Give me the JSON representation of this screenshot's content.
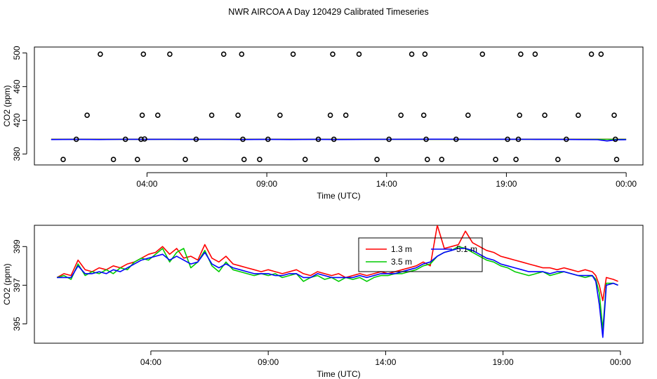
{
  "title": "NWR AIRCOA A  Day 120429  Calibrated Timeseries",
  "chart_data": [
    {
      "type": "line",
      "panel": "top",
      "xlabel": "Time (UTC)",
      "ylabel": "CO2 (ppm)",
      "x_unit": "hours UTC",
      "xlim": [
        -0.7,
        24.7
      ],
      "ylim": [
        367,
        507
      ],
      "xticks": [
        4,
        9,
        14,
        19,
        24
      ],
      "xtick_labels": [
        "04:00",
        "09:00",
        "14:00",
        "19:00",
        "00:00"
      ],
      "yticks": [
        380,
        420,
        460,
        500
      ],
      "ytick_labels": [
        "380",
        "420",
        "460",
        "500"
      ],
      "series": [
        {
          "name": "1.3 m",
          "color": "#ff0000",
          "x": [
            0.0,
            24.0
          ],
          "values": [
            397.5,
            397.5
          ]
        },
        {
          "name": "3.5 m",
          "color": "#00cc00",
          "x": [
            0.0,
            24.0
          ],
          "values": [
            397.4,
            397.4
          ]
        },
        {
          "name": "5.1 m",
          "color": "#0000ff",
          "x": [
            0.0,
            1.0,
            2.0,
            3.0,
            4.0,
            5.0,
            6.0,
            7.0,
            8.0,
            9.0,
            10.0,
            11.0,
            12.0,
            13.0,
            14.0,
            15.0,
            16.0,
            17.0,
            18.0,
            19.0,
            20.0,
            21.0,
            22.0,
            22.8,
            23.2,
            23.6,
            24.0
          ],
          "values": [
            397.2,
            397.3,
            397.2,
            397.4,
            397.3,
            397.4,
            397.3,
            397.4,
            397.2,
            397.3,
            397.2,
            397.3,
            397.2,
            397.3,
            397.4,
            397.5,
            397.6,
            397.5,
            397.4,
            397.5,
            397.4,
            397.3,
            397.2,
            397.0,
            395.5,
            396.8,
            397.0
          ]
        }
      ],
      "flagged_points": {
        "marker": "open-circle",
        "x": [
          0.5,
          1.05,
          1.5,
          2.05,
          2.6,
          3.1,
          3.6,
          3.75,
          3.8,
          3.85,
          3.9,
          4.45,
          4.95,
          5.6,
          6.05,
          6.7,
          7.2,
          7.8,
          7.95,
          8.0,
          8.05,
          8.7,
          9.05,
          9.55,
          10.1,
          10.6,
          11.15,
          11.65,
          11.75,
          11.8,
          12.3,
          12.85,
          13.6,
          14.1,
          14.6,
          15.05,
          15.55,
          15.6,
          15.65,
          15.7,
          16.3,
          16.9,
          17.4,
          18.0,
          18.55,
          19.05,
          19.4,
          19.5,
          19.55,
          19.6,
          20.2,
          20.6,
          21.15,
          21.5,
          22.0,
          22.55,
          22.95,
          23.5,
          23.55,
          23.6
        ],
        "values": [
          373.5,
          397.5,
          426.0,
          498.5,
          373.5,
          397.5,
          373.5,
          397.5,
          426.0,
          498.5,
          397.8,
          426.0,
          498.5,
          373.5,
          397.5,
          426.0,
          498.5,
          426.0,
          498.5,
          397.5,
          373.5,
          373.5,
          397.5,
          426.0,
          498.5,
          373.5,
          397.5,
          426.0,
          498.5,
          397.5,
          426.0,
          498.5,
          373.5,
          397.5,
          426.0,
          498.5,
          426.0,
          498.5,
          397.5,
          373.5,
          373.5,
          397.5,
          426.0,
          498.5,
          373.5,
          397.5,
          373.5,
          397.5,
          426.0,
          498.5,
          498.5,
          426.0,
          373.5,
          397.5,
          426.0,
          498.5,
          498.5,
          426.0,
          397.5,
          373.5
        ]
      }
    },
    {
      "type": "line",
      "panel": "bottom",
      "xlabel": "Time (UTC)",
      "ylabel": "CO2 (ppm)",
      "x_unit": "hours UTC",
      "xlim": [
        -0.96,
        24.96
      ],
      "ylim": [
        394.0,
        400.1
      ],
      "xticks": [
        4,
        9,
        14,
        19,
        24
      ],
      "xtick_labels": [
        "04:00",
        "09:00",
        "14:00",
        "19:00",
        "00:00"
      ],
      "yticks": [
        395,
        397,
        399
      ],
      "ytick_labels": [
        "395",
        "397",
        "399"
      ],
      "legend": {
        "location": "top-center",
        "entries": [
          "1.3 m",
          "3.5 m",
          "5.1 m"
        ]
      },
      "series": [
        {
          "name": "1.3 m",
          "color": "#ff0000",
          "x": [
            0.0,
            0.3,
            0.6,
            0.9,
            1.2,
            1.5,
            1.8,
            2.1,
            2.4,
            2.7,
            3.0,
            3.3,
            3.6,
            3.9,
            4.2,
            4.5,
            4.8,
            5.1,
            5.4,
            5.7,
            6.0,
            6.3,
            6.6,
            6.9,
            7.2,
            7.5,
            7.8,
            8.1,
            8.4,
            8.7,
            9.0,
            9.3,
            9.6,
            9.9,
            10.2,
            10.5,
            10.8,
            11.1,
            11.4,
            11.7,
            12.0,
            12.3,
            12.6,
            12.9,
            13.2,
            13.5,
            13.8,
            14.1,
            14.4,
            14.7,
            15.0,
            15.3,
            15.6,
            15.9,
            16.2,
            16.5,
            16.8,
            17.1,
            17.4,
            17.7,
            18.0,
            18.3,
            18.6,
            18.9,
            19.2,
            19.5,
            19.8,
            20.1,
            20.4,
            20.7,
            21.0,
            21.3,
            21.6,
            21.9,
            22.2,
            22.5,
            22.8,
            22.95,
            23.1,
            23.25,
            23.4,
            23.7,
            23.9
          ],
          "values": [
            397.4,
            397.6,
            397.5,
            398.3,
            397.8,
            397.7,
            397.9,
            397.8,
            398.0,
            397.9,
            398.1,
            398.2,
            398.4,
            398.6,
            398.7,
            399.0,
            398.6,
            398.9,
            398.4,
            398.5,
            398.3,
            399.1,
            398.4,
            398.2,
            398.5,
            398.1,
            398.0,
            397.9,
            397.8,
            397.7,
            397.8,
            397.7,
            397.6,
            397.7,
            397.8,
            397.6,
            397.5,
            397.7,
            397.6,
            397.5,
            397.6,
            397.4,
            397.5,
            397.6,
            397.5,
            397.6,
            397.7,
            397.6,
            397.7,
            397.8,
            397.9,
            398.0,
            398.2,
            398.0,
            400.1,
            398.9,
            399.0,
            399.1,
            399.8,
            399.2,
            399.0,
            398.8,
            398.7,
            398.5,
            398.4,
            398.3,
            398.2,
            398.1,
            398.0,
            397.9,
            397.9,
            397.8,
            397.9,
            397.8,
            397.7,
            397.8,
            397.7,
            397.5,
            397.0,
            396.2,
            397.4,
            397.3,
            397.2
          ]
        },
        {
          "name": "3.5 m",
          "color": "#00cc00",
          "x": [
            0.0,
            0.3,
            0.6,
            0.9,
            1.2,
            1.5,
            1.8,
            2.1,
            2.4,
            2.7,
            3.0,
            3.3,
            3.6,
            3.9,
            4.2,
            4.5,
            4.8,
            5.1,
            5.4,
            5.7,
            6.0,
            6.3,
            6.6,
            6.9,
            7.2,
            7.5,
            7.8,
            8.1,
            8.4,
            8.7,
            9.0,
            9.3,
            9.6,
            9.9,
            10.2,
            10.5,
            10.8,
            11.1,
            11.4,
            11.7,
            12.0,
            12.3,
            12.6,
            12.9,
            13.2,
            13.5,
            13.8,
            14.1,
            14.4,
            14.7,
            15.0,
            15.3,
            15.6,
            15.9,
            16.2,
            16.5,
            16.8,
            17.1,
            17.4,
            17.7,
            18.0,
            18.3,
            18.6,
            18.9,
            19.2,
            19.5,
            19.8,
            20.1,
            20.4,
            20.7,
            21.0,
            21.3,
            21.6,
            21.9,
            22.2,
            22.5,
            22.8,
            22.95,
            23.1,
            23.25,
            23.4,
            23.7,
            23.9
          ],
          "values": [
            397.4,
            397.5,
            397.3,
            398.1,
            397.5,
            397.7,
            397.6,
            397.8,
            397.6,
            397.9,
            397.8,
            398.2,
            398.4,
            398.3,
            398.6,
            398.9,
            398.2,
            398.7,
            398.9,
            397.9,
            398.2,
            398.8,
            398.0,
            397.7,
            398.2,
            397.8,
            397.7,
            397.6,
            397.5,
            397.6,
            397.5,
            397.6,
            397.4,
            397.5,
            397.6,
            397.2,
            397.4,
            397.5,
            397.3,
            397.4,
            397.2,
            397.4,
            397.3,
            397.4,
            397.2,
            397.4,
            397.5,
            397.5,
            397.6,
            397.6,
            397.7,
            397.8,
            398.0,
            398.1,
            398.5,
            398.7,
            398.8,
            399.0,
            398.9,
            398.7,
            398.5,
            398.3,
            398.2,
            398.0,
            397.9,
            397.7,
            397.6,
            397.5,
            397.6,
            397.7,
            397.5,
            397.6,
            397.7,
            397.6,
            397.5,
            397.4,
            397.5,
            397.3,
            396.6,
            394.7,
            397.1,
            397.1,
            397.0
          ]
        },
        {
          "name": "5.1 m",
          "color": "#0000ff",
          "x": [
            0.0,
            0.3,
            0.6,
            0.9,
            1.2,
            1.5,
            1.8,
            2.1,
            2.4,
            2.7,
            3.0,
            3.3,
            3.6,
            3.9,
            4.2,
            4.5,
            4.8,
            5.1,
            5.4,
            5.7,
            6.0,
            6.3,
            6.6,
            6.9,
            7.2,
            7.5,
            7.8,
            8.1,
            8.4,
            8.7,
            9.0,
            9.3,
            9.6,
            9.9,
            10.2,
            10.5,
            10.8,
            11.1,
            11.4,
            11.7,
            12.0,
            12.3,
            12.6,
            12.9,
            13.2,
            13.5,
            13.8,
            14.1,
            14.4,
            14.7,
            15.0,
            15.3,
            15.6,
            15.9,
            16.2,
            16.5,
            16.8,
            17.1,
            17.4,
            17.7,
            18.0,
            18.3,
            18.6,
            18.9,
            19.2,
            19.5,
            19.8,
            20.1,
            20.4,
            20.7,
            21.0,
            21.3,
            21.6,
            21.9,
            22.2,
            22.5,
            22.8,
            22.95,
            23.1,
            23.25,
            23.4,
            23.7,
            23.9
          ],
          "values": [
            397.4,
            397.4,
            397.4,
            398.0,
            397.6,
            397.6,
            397.7,
            397.6,
            397.8,
            397.7,
            397.9,
            398.1,
            398.3,
            398.4,
            398.5,
            398.6,
            398.3,
            398.5,
            398.3,
            398.1,
            398.2,
            398.7,
            398.1,
            397.9,
            398.1,
            397.9,
            397.8,
            397.7,
            397.6,
            397.6,
            397.6,
            397.5,
            397.5,
            397.6,
            397.6,
            397.4,
            397.4,
            397.6,
            397.5,
            397.4,
            397.4,
            397.4,
            397.4,
            397.5,
            397.4,
            397.5,
            397.6,
            397.6,
            397.6,
            397.7,
            397.8,
            397.9,
            398.1,
            398.2,
            398.5,
            398.7,
            398.8,
            398.9,
            398.9,
            398.8,
            398.6,
            398.4,
            398.3,
            398.1,
            398.0,
            397.9,
            397.8,
            397.7,
            397.7,
            397.7,
            397.6,
            397.7,
            397.7,
            397.6,
            397.5,
            397.5,
            397.5,
            397.2,
            396.0,
            394.3,
            397.0,
            397.1,
            397.0
          ]
        }
      ]
    }
  ]
}
